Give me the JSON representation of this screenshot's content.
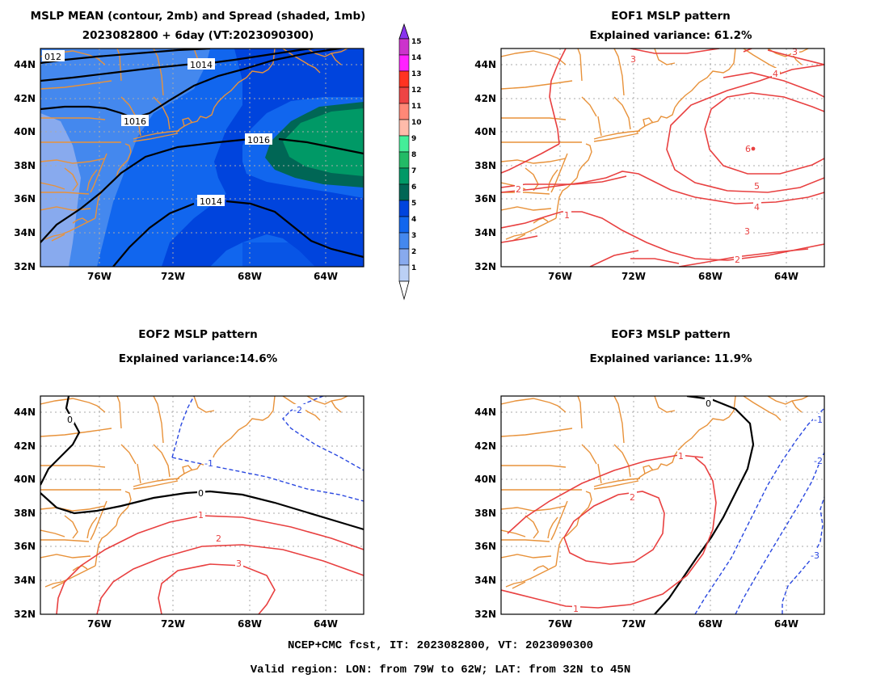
{
  "figure_type": "ensemble MSLP map panel",
  "colors": {
    "coast": "#e8923a",
    "positive": "#e84040",
    "negative": "#2a48e0",
    "zero": "#000000",
    "grid": "#aaaaaa"
  },
  "axes": {
    "lon_ticks": [
      "76W",
      "72W",
      "68W",
      "64W"
    ],
    "lat_ticks": [
      "44N",
      "42N",
      "40N",
      "38N",
      "36N",
      "34N",
      "32N"
    ]
  },
  "colorbar": {
    "labels": [
      "15",
      "14",
      "13",
      "12",
      "11",
      "10",
      "9",
      "8",
      "7",
      "6",
      "5",
      "4",
      "3",
      "2",
      "1"
    ],
    "colors": [
      "#cc33cc",
      "#ff22ff",
      "#ff3322",
      "#ee4444",
      "#ff8877",
      "#ffbbaa",
      "#44ee99",
      "#22bb66",
      "#009966",
      "#006655",
      "#0044dd",
      "#1166ee",
      "#4488ee",
      "#88aaee",
      "#bbd0f5"
    ],
    "top_color": "#8833ee"
  },
  "panels": {
    "p1": {
      "title1": "MSLP MEAN (contour, 2mb) and Spread (shaded, 1mb)",
      "title2": "2023082800 + 6day (VT:2023090300)"
    },
    "p2": {
      "title1": "EOF1 MSLP pattern",
      "title2": "Explained variance: 61.2%"
    },
    "p3": {
      "title1": "EOF2 MSLP pattern",
      "title2": "Explained variance:14.6%"
    },
    "p4": {
      "title1": "EOF3 MSLP pattern",
      "title2": "Explained variance: 11.9%"
    }
  },
  "contour_labels": {
    "p1": [
      "012",
      "1014",
      "1016",
      "1016",
      "1014"
    ],
    "p2": [
      "3",
      "3",
      "4",
      "2",
      "1",
      "6",
      "5",
      "4",
      "3",
      "2"
    ],
    "p3": [
      "0",
      "-2",
      "-1",
      "0",
      "1",
      "2",
      "3"
    ],
    "p4": [
      "0",
      "1",
      "2",
      "1",
      "-1",
      "-2",
      "-3"
    ]
  },
  "footer": {
    "line1": "NCEP+CMC fcst, IT: 2023082800, VT: 2023090300",
    "line2": "Valid region: LON: from 79W to 62W; LAT: from 32N to 45N"
  }
}
